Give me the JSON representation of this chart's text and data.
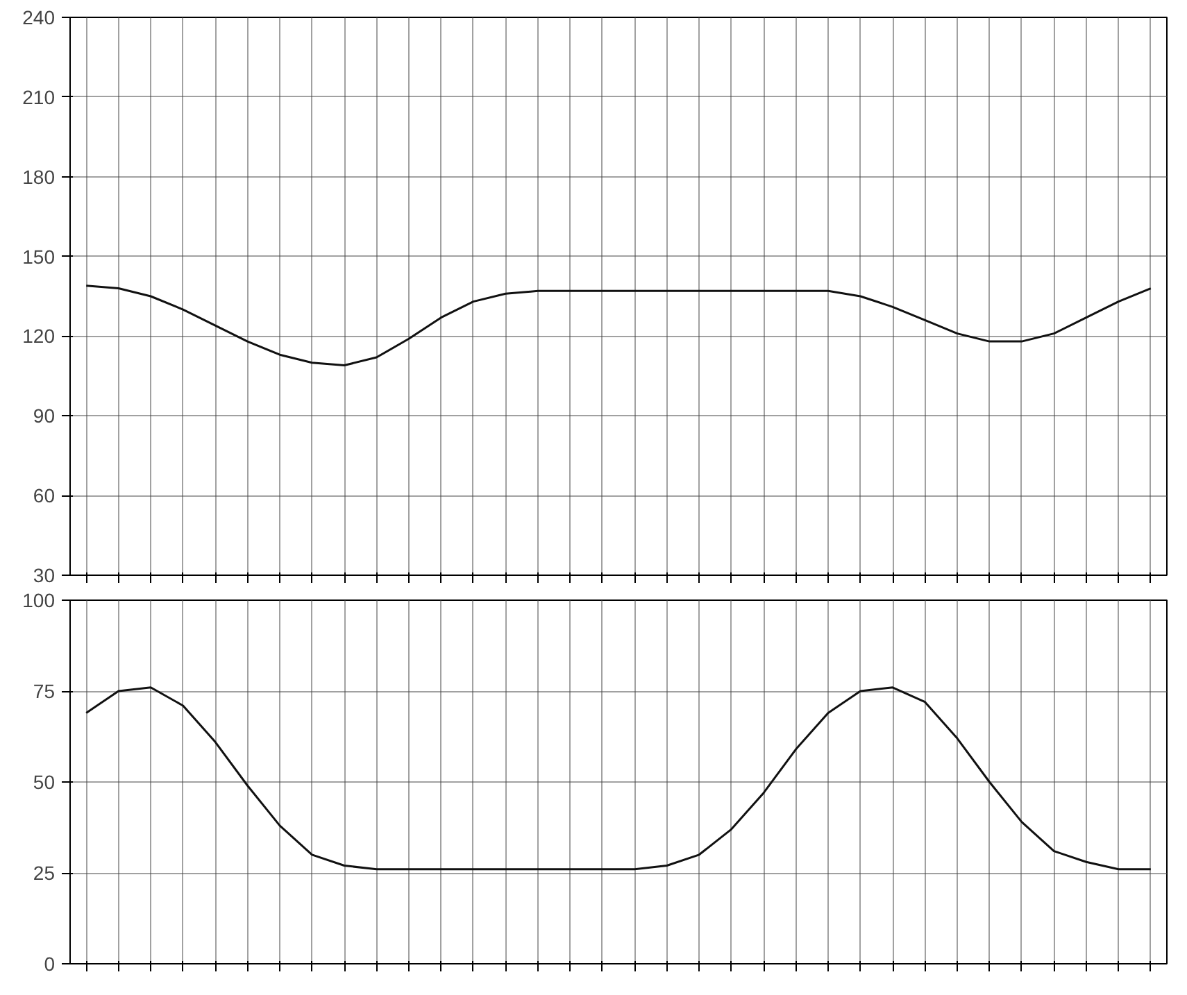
{
  "chart_data": [
    {
      "type": "line",
      "categories": [
        null,
        null,
        null,
        null,
        null,
        null,
        null,
        null,
        null,
        null,
        null,
        null,
        null,
        null,
        null,
        null,
        null,
        null,
        null,
        null,
        null,
        null,
        null,
        null,
        null,
        null,
        null,
        null,
        null,
        null,
        null,
        null,
        null,
        null
      ],
      "values": [
        139,
        138,
        135,
        130,
        124,
        118,
        113,
        110,
        109,
        112,
        119,
        127,
        133,
        136,
        137,
        137,
        137,
        137,
        137,
        137,
        137,
        137,
        137,
        137,
        135,
        131,
        126,
        121,
        118,
        118,
        121,
        127,
        133,
        138
      ],
      "color": "#111111",
      "ylim": [
        30,
        240
      ],
      "yticks": [
        30,
        60,
        90,
        120,
        150,
        180,
        210,
        240
      ],
      "grid": true,
      "tick_labels": "y"
    },
    {
      "type": "line",
      "categories": [
        null,
        null,
        null,
        null,
        null,
        null,
        null,
        null,
        null,
        null,
        null,
        null,
        null,
        null,
        null,
        null,
        null,
        null,
        null,
        null,
        null,
        null,
        null,
        null,
        null,
        null,
        null,
        null,
        null,
        null,
        null,
        null,
        null,
        null
      ],
      "values": [
        69,
        75,
        76,
        71,
        61,
        49,
        38,
        30,
        27,
        26,
        26,
        26,
        26,
        26,
        26,
        26,
        26,
        26,
        27,
        30,
        37,
        47,
        59,
        69,
        75,
        76,
        72,
        62,
        50,
        39,
        31,
        28,
        26,
        26
      ],
      "color": "#111111",
      "ylim": [
        0,
        100
      ],
      "yticks": [
        0,
        25,
        50,
        75,
        100
      ],
      "grid": true,
      "tick_labels": "y"
    }
  ]
}
